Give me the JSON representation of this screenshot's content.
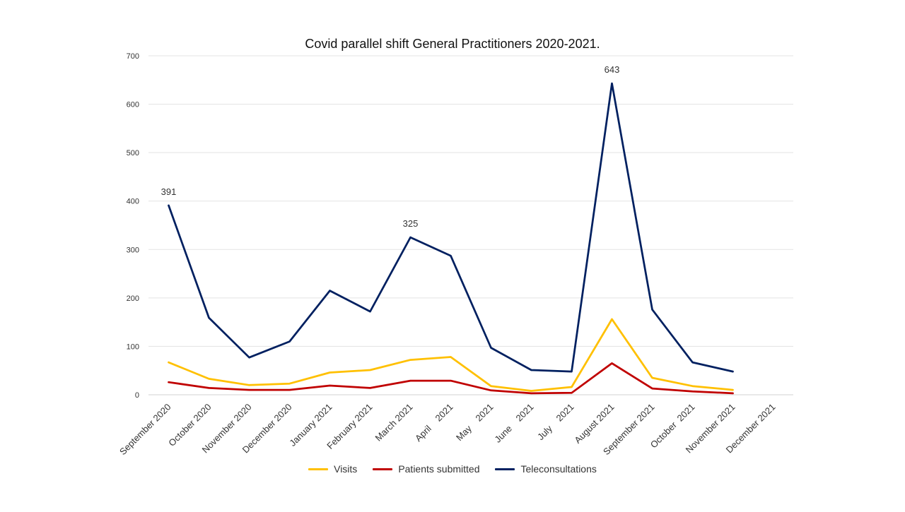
{
  "chart_data": {
    "type": "line",
    "title": "Covid parallel shift General Practitioners 2020-2021.",
    "xlabel": "",
    "ylabel": "",
    "ylim": [
      0,
      700
    ],
    "yticks": [
      0,
      100,
      200,
      300,
      400,
      500,
      600,
      700
    ],
    "grid": true,
    "legend_position": "bottom",
    "categories": [
      "September 2020",
      "October 2020",
      "November 2020",
      "December 2020",
      "January 2021",
      "February 2021",
      "March 2021",
      "April    2021",
      "May    2021",
      "June    2021",
      "July    2021",
      "August 2021",
      "September 2021",
      "October  2021",
      "November 2021",
      "December 2021"
    ],
    "series": [
      {
        "name": "Visits",
        "color": "#FFC000",
        "values": [
          67,
          33,
          20,
          23,
          46,
          51,
          72,
          78,
          18,
          8,
          16,
          156,
          35,
          18,
          10,
          null
        ]
      },
      {
        "name": "Patients submitted",
        "color": "#C00000",
        "values": [
          26,
          14,
          10,
          10,
          19,
          14,
          29,
          29,
          9,
          3,
          4,
          65,
          13,
          7,
          3,
          null
        ]
      },
      {
        "name": "Teleconsultations",
        "color": "#002060",
        "values": [
          391,
          159,
          77,
          110,
          215,
          172,
          325,
          287,
          97,
          51,
          48,
          643,
          176,
          67,
          48,
          null
        ]
      }
    ],
    "annotations": [
      {
        "series": "Teleconsultations",
        "category": "September 2020",
        "label": "391"
      },
      {
        "series": "Teleconsultations",
        "category": "March 2021",
        "label": "325"
      },
      {
        "series": "Teleconsultations",
        "category": "August 2021",
        "label": "643"
      }
    ]
  }
}
